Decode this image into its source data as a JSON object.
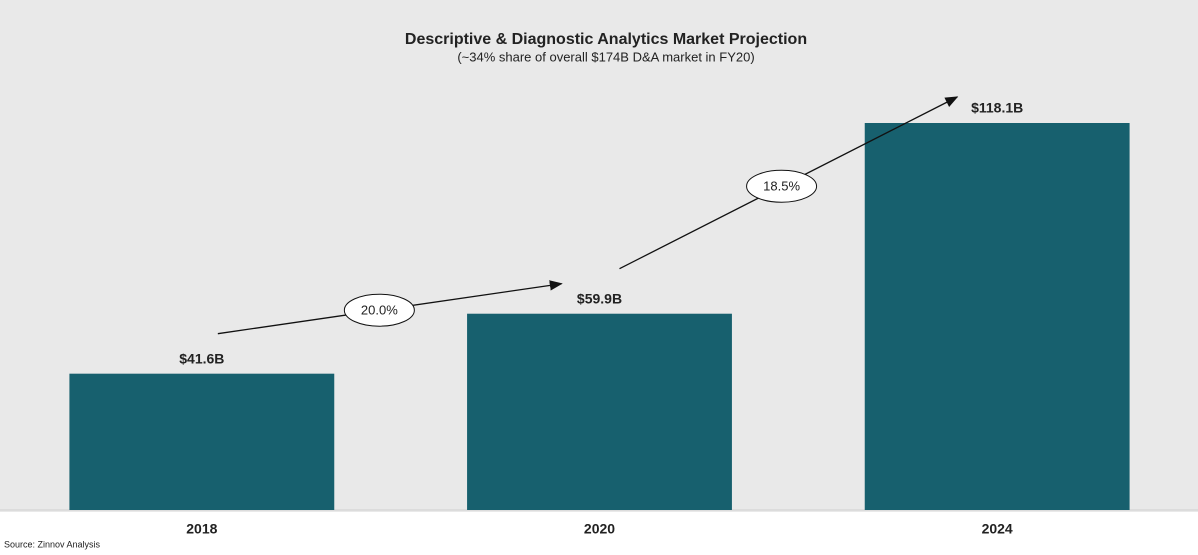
{
  "chart_data": {
    "type": "bar",
    "title": "Descriptive & Diagnostic Analytics Market Projection",
    "subtitle": "(~34% share of overall $174B D&A market in FY20)",
    "categories": [
      "2018",
      "2020",
      "2024"
    ],
    "values": [
      41.6,
      59.9,
      118.1
    ],
    "value_labels": [
      "$41.6B",
      "$59.9B",
      "$118.1B"
    ],
    "color": "#17606e",
    "annotations": [
      "20.0%",
      "18.5%"
    ],
    "source": "Source: Zinnov Analysis"
  }
}
